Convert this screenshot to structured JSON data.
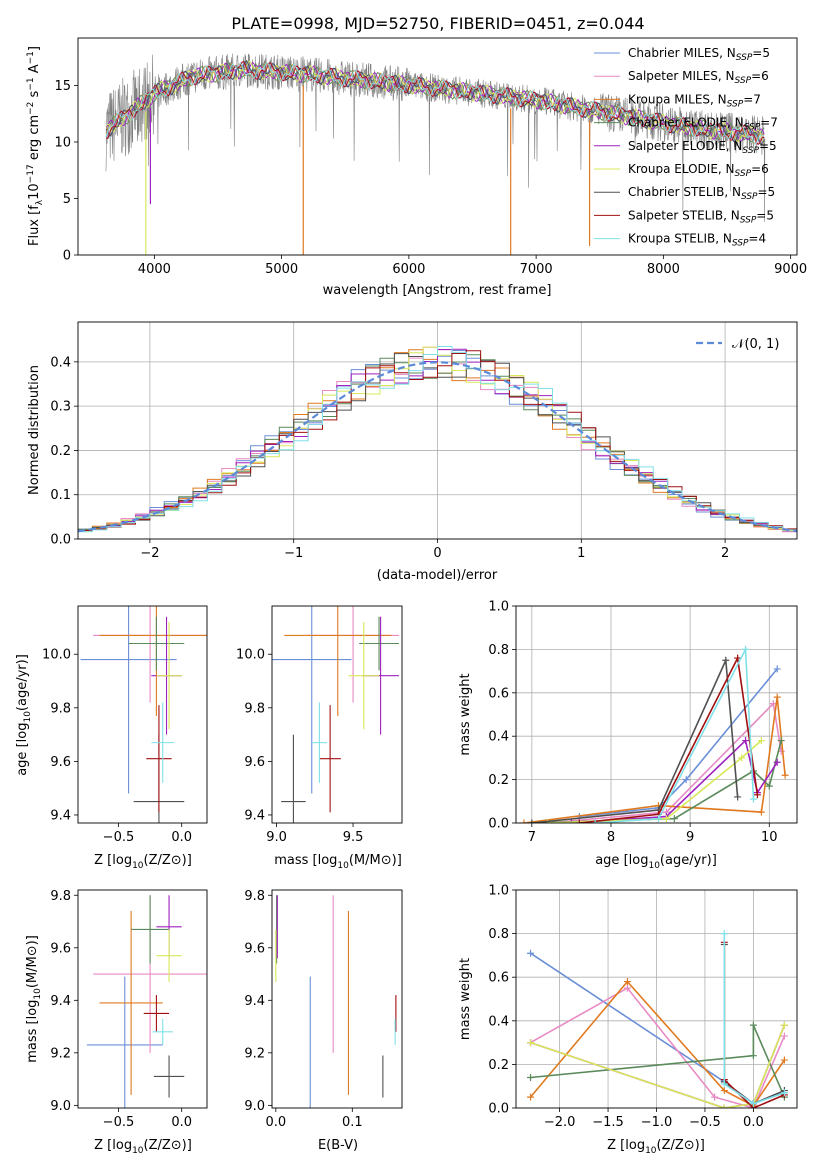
{
  "title": "PLATE=0998, MJD=52750, FIBERID=0451, z=0.044",
  "colors": {
    "Chabrier MILES": "#6a8fd8",
    "Salpeter MILES": "#e88ac4",
    "Kroupa MILES": "#e07a20",
    "Chabrier ELODIE": "#5a8a5a",
    "Salpeter ELODIE": "#a020c0",
    "Kroupa ELODIE": "#d8e858",
    "Chabrier STELIB": "#505050",
    "Salpeter STELIB": "#a01010",
    "Kroupa STELIB": "#80e0e8",
    "data": "#808080"
  },
  "chart_data": [
    {
      "id": "spectrum",
      "type": "line",
      "xlabel": "wavelength [Angstrom, rest frame]",
      "ylabel": "Flux [f_λ 10^-17 erg cm^-2 s^-1 A^-1]",
      "ylabel_parts": [
        "Flux [f",
        "λ",
        "10",
        "−17",
        " erg cm",
        "−2",
        " s",
        "−1",
        " A",
        "−1",
        "]"
      ],
      "xlim": [
        3400,
        9050
      ],
      "ylim": [
        0,
        19.2
      ],
      "xticks": [
        4000,
        5000,
        6000,
        7000,
        8000,
        9000
      ],
      "yticks": [
        0,
        5,
        10,
        15
      ],
      "legend_position": "upper right",
      "legend": [
        {
          "name": "Chabrier MILES",
          "n": "5"
        },
        {
          "name": "Salpeter MILES",
          "n": "6"
        },
        {
          "name": "Kroupa MILES",
          "n": "7"
        },
        {
          "name": "Chabrier ELODIE",
          "n": "7"
        },
        {
          "name": "Salpeter ELODIE",
          "n": "5"
        },
        {
          "name": "Kroupa ELODIE",
          "n": "6"
        },
        {
          "name": "Chabrier STELIB",
          "n": "5"
        },
        {
          "name": "Salpeter STELIB",
          "n": "5"
        },
        {
          "name": "Kroupa STELIB",
          "n": "4"
        }
      ],
      "legend_sub": "SSP",
      "continuum": {
        "x": [
          3620,
          3800,
          4000,
          4300,
          4700,
          5200,
          5800,
          6500,
          7000,
          7600,
          8200,
          8800
        ],
        "y": [
          11.0,
          12.5,
          14.3,
          15.8,
          16.4,
          16.0,
          15.3,
          14.4,
          13.7,
          12.5,
          11.3,
          10.5
        ]
      },
      "dips": [
        {
          "x": 3933,
          "y": 0
        },
        {
          "x": 3969,
          "y": 4.5
        },
        {
          "x": 5170,
          "y": 0
        },
        {
          "x": 6800,
          "y": 0
        },
        {
          "x": 7420,
          "y": 0.8
        }
      ]
    },
    {
      "id": "residuals",
      "type": "area",
      "xlabel": "(data-model)/error",
      "ylabel": "Normed distribution",
      "xlim": [
        -2.5,
        2.5
      ],
      "ylim": [
        0,
        0.49
      ],
      "xticks": [
        -2,
        -1,
        0,
        1,
        2
      ],
      "yticks": [
        0.0,
        0.1,
        0.2,
        0.3,
        0.4
      ],
      "grid": true,
      "legend_position": "upper right",
      "reference": {
        "name": "𝒩(0, 1)",
        "mean": 0,
        "sigma": 1
      },
      "bin_width": 0.1
    },
    {
      "id": "age-vs-Z",
      "type": "scatter",
      "xlabel": "Z [log10(Z/Z⊙)]",
      "ylabel": "age [log10(age/yr)]",
      "xlim": [
        -0.82,
        0.2
      ],
      "ylim": [
        9.37,
        10.18
      ],
      "xticks": [
        -0.5,
        0.0
      ],
      "yticks": [
        9.4,
        9.6,
        9.8,
        10.0
      ],
      "points": [
        {
          "model": "Chabrier MILES",
          "x": -0.42,
          "xerr": 0.38,
          "y": 9.98,
          "yerr": 0.5
        },
        {
          "model": "Salpeter MILES",
          "x": -0.25,
          "xerr": 0.45,
          "y": 10.07,
          "yerr": 0.25
        },
        {
          "model": "Kroupa MILES",
          "x": -0.2,
          "xerr": 0.45,
          "y": 10.07,
          "yerr": 0.3
        },
        {
          "model": "Chabrier ELODIE",
          "x": -0.2,
          "xerr": 0.22,
          "y": 10.04,
          "yerr": 0.1
        },
        {
          "model": "Salpeter ELODIE",
          "x": -0.12,
          "xerr": 0.12,
          "y": 9.92,
          "yerr": 0.22
        },
        {
          "model": "Kroupa ELODIE",
          "x": -0.1,
          "xerr": 0.1,
          "y": 9.92,
          "yerr": 0.2
        },
        {
          "model": "Chabrier STELIB",
          "x": -0.18,
          "xerr": 0.2,
          "y": 9.45,
          "yerr": 0.25
        },
        {
          "model": "Salpeter STELIB",
          "x": -0.18,
          "xerr": 0.1,
          "y": 9.61,
          "yerr": 0.2
        },
        {
          "model": "Kroupa STELIB",
          "x": -0.15,
          "xerr": 0.09,
          "y": 9.67,
          "yerr": 0.15
        }
      ]
    },
    {
      "id": "age-vs-mass",
      "type": "scatter",
      "xlabel": "mass [log10(M/M⊙)]",
      "ylabel": "",
      "xlim": [
        8.97,
        9.82
      ],
      "ylim": [
        9.37,
        10.18
      ],
      "xticks": [
        9.0,
        9.5
      ],
      "yticks": [
        9.4,
        9.6,
        9.8,
        10.0
      ],
      "points": [
        {
          "model": "Chabrier MILES",
          "x": 9.23,
          "xerr": 0.26,
          "y": 9.98,
          "yerr": 0.5
        },
        {
          "model": "Salpeter MILES",
          "x": 9.5,
          "xerr": 0.3,
          "y": 10.07,
          "yerr": 0.25
        },
        {
          "model": "Kroupa MILES",
          "x": 9.4,
          "xerr": 0.35,
          "y": 10.07,
          "yerr": 0.3
        },
        {
          "model": "Chabrier ELODIE",
          "x": 9.67,
          "xerr": 0.13,
          "y": 10.04,
          "yerr": 0.1
        },
        {
          "model": "Salpeter ELODIE",
          "x": 9.68,
          "xerr": 0.12,
          "y": 9.92,
          "yerr": 0.22
        },
        {
          "model": "Kroupa ELODIE",
          "x": 9.57,
          "xerr": 0.1,
          "y": 9.92,
          "yerr": 0.2
        },
        {
          "model": "Chabrier STELIB",
          "x": 9.11,
          "xerr": 0.08,
          "y": 9.45,
          "yerr": 0.25
        },
        {
          "model": "Salpeter STELIB",
          "x": 9.35,
          "xerr": 0.07,
          "y": 9.61,
          "yerr": 0.2
        },
        {
          "model": "Kroupa STELIB",
          "x": 9.28,
          "xerr": 0.05,
          "y": 9.67,
          "yerr": 0.15
        }
      ]
    },
    {
      "id": "weight-vs-age",
      "type": "line",
      "xlabel": "age [log10(age/yr)]",
      "ylabel": "mass weight",
      "xlim": [
        6.8,
        10.35
      ],
      "ylim": [
        0,
        1.0
      ],
      "xticks": [
        7,
        8,
        9,
        10
      ],
      "yticks": [
        0.0,
        0.2,
        0.4,
        0.6,
        0.8,
        1.0
      ],
      "grid": true,
      "series": [
        {
          "model": "Chabrier MILES",
          "x": [
            7.6,
            8.6,
            8.95,
            10.1
          ],
          "y": [
            0.03,
            0.07,
            0.2,
            0.71
          ]
        },
        {
          "model": "Salpeter MILES",
          "x": [
            7.2,
            8.7,
            10.05,
            10.15
          ],
          "y": [
            0.0,
            0.05,
            0.55,
            0.33
          ]
        },
        {
          "model": "Kroupa MILES",
          "x": [
            6.9,
            8.6,
            9.9,
            10.1,
            10.2
          ],
          "y": [
            0.0,
            0.08,
            0.05,
            0.58,
            0.22
          ]
        },
        {
          "model": "Chabrier ELODIE",
          "x": [
            7.0,
            8.8,
            9.8,
            10.0,
            10.15
          ],
          "y": [
            0.0,
            0.02,
            0.24,
            0.17,
            0.38
          ]
        },
        {
          "model": "Salpeter ELODIE",
          "x": [
            7.5,
            8.7,
            9.7,
            9.85,
            10.1
          ],
          "y": [
            0.0,
            0.03,
            0.38,
            0.14,
            0.28
          ]
        },
        {
          "model": "Kroupa ELODIE",
          "x": [
            7.2,
            8.7,
            9.65,
            9.9
          ],
          "y": [
            0.0,
            0.02,
            0.3,
            0.38
          ]
        },
        {
          "model": "Chabrier STELIB",
          "x": [
            7.0,
            8.6,
            9.45,
            9.6
          ],
          "y": [
            0.0,
            0.06,
            0.75,
            0.12
          ]
        },
        {
          "model": "Salpeter STELIB",
          "x": [
            7.6,
            8.6,
            9.6,
            9.85
          ],
          "y": [
            0.0,
            0.04,
            0.76,
            0.13
          ]
        },
        {
          "model": "Kroupa STELIB",
          "x": [
            7.8,
            8.6,
            9.7,
            9.8
          ],
          "y": [
            0.0,
            0.02,
            0.8,
            0.11
          ]
        }
      ]
    },
    {
      "id": "mass-vs-Z",
      "type": "scatter",
      "xlabel": "Z [log10(Z/Z⊙)]",
      "ylabel": "mass [log10(M/M⊙)]",
      "xlim": [
        -0.82,
        0.2
      ],
      "ylim": [
        8.99,
        9.82
      ],
      "xticks": [
        -0.5,
        0.0
      ],
      "yticks": [
        9.0,
        9.2,
        9.4,
        9.6,
        9.8
      ],
      "points": [
        {
          "model": "Chabrier MILES",
          "x": -0.45,
          "xerr": 0.3,
          "y": 9.23,
          "yerr": 0.26
        },
        {
          "model": "Salpeter MILES",
          "x": -0.25,
          "xerr": 0.45,
          "y": 9.5,
          "yerr": 0.3
        },
        {
          "model": "Kroupa MILES",
          "x": -0.4,
          "xerr": 0.25,
          "y": 9.39,
          "yerr": 0.35
        },
        {
          "model": "Chabrier ELODIE",
          "x": -0.25,
          "xerr": 0.15,
          "y": 9.67,
          "yerr": 0.13
        },
        {
          "model": "Salpeter ELODIE",
          "x": -0.1,
          "xerr": 0.1,
          "y": 9.68,
          "yerr": 0.12
        },
        {
          "model": "Kroupa ELODIE",
          "x": -0.1,
          "xerr": 0.1,
          "y": 9.57,
          "yerr": 0.1
        },
        {
          "model": "Chabrier STELIB",
          "x": -0.1,
          "xerr": 0.12,
          "y": 9.11,
          "yerr": 0.08
        },
        {
          "model": "Salpeter STELIB",
          "x": -0.2,
          "xerr": 0.1,
          "y": 9.35,
          "yerr": 0.07
        },
        {
          "model": "Kroupa STELIB",
          "x": -0.15,
          "xerr": 0.08,
          "y": 9.28,
          "yerr": 0.05
        }
      ]
    },
    {
      "id": "mass-vs-ebv",
      "type": "scatter",
      "xlabel": "E(B-V)",
      "ylabel": "",
      "xlim": [
        -0.005,
        0.165
      ],
      "ylim": [
        8.99,
        9.82
      ],
      "xticks": [
        0.0,
        0.1
      ],
      "yticks": [
        9.0,
        9.2,
        9.4,
        9.6,
        9.8
      ],
      "points": [
        {
          "model": "Chabrier MILES",
          "x": 0.045,
          "y": 9.23,
          "yerr": 0.26
        },
        {
          "model": "Salpeter MILES",
          "x": 0.075,
          "y": 9.5,
          "yerr": 0.3
        },
        {
          "model": "Kroupa MILES",
          "x": 0.095,
          "y": 9.39,
          "yerr": 0.35
        },
        {
          "model": "Chabrier ELODIE",
          "x": 0.001,
          "y": 9.67,
          "yerr": 0.13
        },
        {
          "model": "Salpeter ELODIE",
          "x": 0.002,
          "y": 9.68,
          "yerr": 0.12
        },
        {
          "model": "Kroupa ELODIE",
          "x": 0.0,
          "y": 9.57,
          "yerr": 0.1
        },
        {
          "model": "Chabrier STELIB",
          "x": 0.14,
          "y": 9.11,
          "yerr": 0.08
        },
        {
          "model": "Salpeter STELIB",
          "x": 0.157,
          "y": 9.35,
          "yerr": 0.07
        },
        {
          "model": "Kroupa STELIB",
          "x": 0.156,
          "y": 9.28,
          "yerr": 0.05
        }
      ]
    },
    {
      "id": "weight-vs-Z",
      "type": "line",
      "xlabel": "Z [log10(Z/Z⊙)]",
      "ylabel": "mass weight",
      "xlim": [
        -2.45,
        0.45
      ],
      "ylim": [
        0,
        1.0
      ],
      "xticks": [
        -2.0,
        -1.5,
        -1.0,
        -0.5,
        0.0
      ],
      "yticks": [
        0.0,
        0.2,
        0.4,
        0.6,
        0.8,
        1.0
      ],
      "grid": true,
      "series": [
        {
          "model": "Chabrier MILES",
          "x": [
            -2.3,
            -0.3,
            0.0,
            0.32
          ],
          "y": [
            0.71,
            0.12,
            0.02,
            0.07
          ]
        },
        {
          "model": "Salpeter MILES",
          "x": [
            -2.3,
            -1.3,
            -0.4,
            0.0,
            0.32
          ],
          "y": [
            0.3,
            0.55,
            0.05,
            0.0,
            0.33
          ]
        },
        {
          "model": "Kroupa MILES",
          "x": [
            -2.3,
            -1.3,
            -0.3,
            0.0,
            0.32
          ],
          "y": [
            0.05,
            0.58,
            0.08,
            0.01,
            0.22
          ]
        },
        {
          "model": "Chabrier ELODIE",
          "x": [
            -2.3,
            0.0,
            0.0,
            0.32
          ],
          "y": [
            0.14,
            0.24,
            0.38,
            0.05
          ]
        },
        {
          "model": "Salpeter ELODIE",
          "x": [
            -2.3,
            -0.3,
            0.0,
            0.32
          ],
          "y": [
            0.3,
            0.0,
            0.02,
            0.38
          ]
        },
        {
          "model": "Kroupa ELODIE",
          "x": [
            -2.3,
            -0.3,
            0.0,
            0.32
          ],
          "y": [
            0.3,
            0.0,
            0.02,
            0.38
          ]
        },
        {
          "model": "Chabrier STELIB",
          "x": [
            -0.3,
            -0.3,
            0.0,
            0.32
          ],
          "y": [
            0.75,
            0.12,
            0.02,
            0.08
          ]
        },
        {
          "model": "Salpeter STELIB",
          "x": [
            -0.3,
            -0.3,
            0.0,
            0.32
          ],
          "y": [
            0.76,
            0.13,
            0.0,
            0.06
          ]
        },
        {
          "model": "Kroupa STELIB",
          "x": [
            -0.3,
            -0.3,
            0.0,
            0.32
          ],
          "y": [
            0.8,
            0.11,
            0.02,
            0.07
          ]
        }
      ]
    }
  ]
}
